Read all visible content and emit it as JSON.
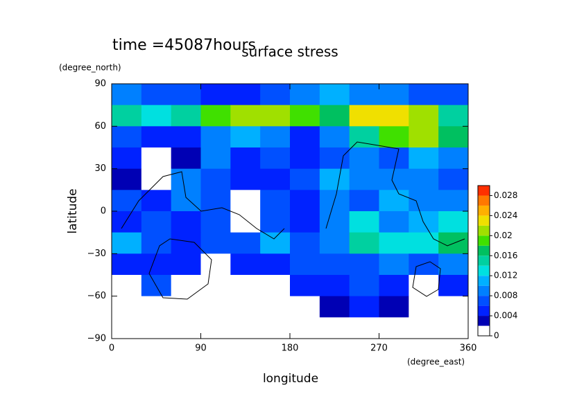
{
  "chart_data": {
    "type": "contour",
    "title": "surface stress",
    "subtitle": "time =45087hours",
    "x_label": "longitude",
    "y_label": "latitude",
    "x_unit": "(degree_east)",
    "y_unit": "(degree_north)",
    "xlim": [
      0,
      360
    ],
    "ylim": [
      -90,
      90
    ],
    "xticks": [
      0,
      90,
      180,
      270,
      360
    ],
    "yticks": [
      {
        "value": -90,
        "label": "−90"
      },
      {
        "value": -60,
        "label": "−60"
      },
      {
        "value": -30,
        "label": "−30"
      },
      0,
      30,
      60,
      90
    ],
    "x": [
      15,
      45,
      75,
      105,
      135,
      165,
      195,
      225,
      255,
      285,
      315,
      345
    ],
    "y": [
      82.5,
      67.5,
      52.5,
      37.5,
      22.5,
      7.5,
      -7.5,
      -22.5,
      -37.5,
      -52.5,
      -67.5,
      -82.5
    ],
    "values": [
      [
        0.008,
        0.006,
        0.006,
        0.004,
        0.004,
        0.006,
        0.008,
        0.01,
        0.008,
        0.008,
        0.006,
        0.006
      ],
      [
        0.014,
        0.012,
        0.014,
        0.018,
        0.02,
        0.02,
        0.018,
        0.016,
        0.022,
        0.022,
        0.02,
        0.014
      ],
      [
        0.006,
        0.004,
        0.004,
        0.008,
        0.01,
        0.008,
        0.004,
        0.008,
        0.014,
        0.018,
        0.02,
        0.016
      ],
      [
        0.004,
        0.001,
        0.002,
        0.008,
        0.004,
        0.006,
        0.004,
        0.006,
        0.008,
        0.006,
        0.01,
        0.008
      ],
      [
        0.002,
        0.001,
        0.008,
        0.006,
        0.004,
        0.004,
        0.006,
        0.01,
        0.008,
        0.008,
        0.008,
        0.006
      ],
      [
        0.006,
        0.004,
        0.008,
        0.006,
        0.001,
        0.006,
        0.004,
        0.008,
        0.006,
        0.01,
        0.008,
        0.008
      ],
      [
        0.004,
        0.006,
        0.004,
        0.006,
        0.001,
        0.006,
        0.004,
        0.008,
        0.012,
        0.008,
        0.01,
        0.012
      ],
      [
        0.01,
        0.006,
        0.004,
        0.006,
        0.006,
        0.01,
        0.006,
        0.008,
        0.014,
        0.012,
        0.012,
        0.016
      ],
      [
        0.004,
        0.004,
        0.004,
        0.001,
        0.004,
        0.004,
        0.006,
        0.006,
        0.006,
        0.008,
        0.006,
        0.008
      ],
      [
        0.001,
        0.006,
        0.001,
        0.001,
        0.001,
        0.001,
        0.004,
        0.004,
        0.006,
        0.004,
        0.001,
        0.004
      ],
      [
        0.001,
        0.001,
        0.001,
        0.001,
        0.001,
        0.001,
        0.001,
        0.002,
        0.004,
        0.002,
        0.001,
        0.001
      ],
      [
        0,
        0,
        0,
        0,
        0,
        0,
        0,
        0,
        0,
        0,
        0,
        0
      ]
    ],
    "levels": [
      0,
      0.002,
      0.004,
      0.006,
      0.008,
      0.01,
      0.012,
      0.014,
      0.016,
      0.018,
      0.02,
      0.022,
      0.024,
      0.026,
      0.028,
      0.03
    ],
    "colors": [
      "#ffffff",
      "#0000b4",
      "#0022ff",
      "#0050ff",
      "#0080ff",
      "#00b0ff",
      "#00e0e0",
      "#00d0a0",
      "#00c060",
      "#40e000",
      "#a0e000",
      "#f0e000",
      "#ffb000",
      "#ff7800",
      "#ff3000"
    ],
    "colorbar_ticks": [
      0,
      0.004,
      0.008,
      0.012,
      0.016,
      0.02,
      0.024,
      0.028
    ]
  }
}
